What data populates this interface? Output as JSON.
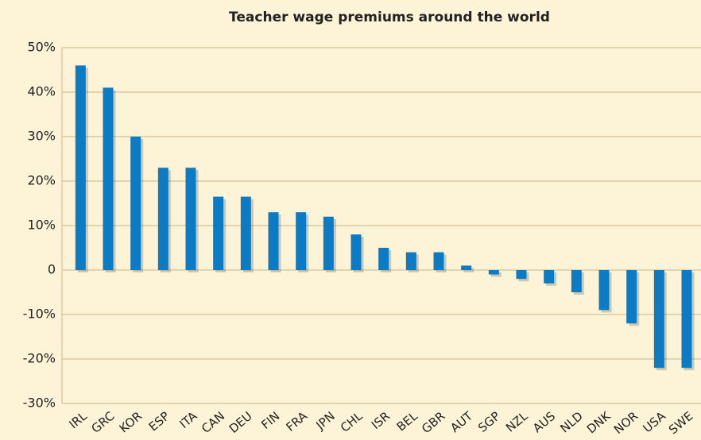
{
  "chart_data": {
    "type": "bar",
    "title": "Teacher wage premiums around the world",
    "categories": [
      "IRL",
      "GRC",
      "KOR",
      "ESP",
      "ITA",
      "CAN",
      "DEU",
      "FIN",
      "FRA",
      "JPN",
      "CHL",
      "ISR",
      "BEL",
      "GBR",
      "AUT",
      "SGP",
      "NZL",
      "AUS",
      "NLD",
      "DNK",
      "NOR",
      "USA",
      "SWE"
    ],
    "values": [
      46,
      41,
      30,
      23,
      23,
      16.5,
      16.5,
      13,
      13,
      12,
      8,
      5,
      4,
      4,
      1,
      -1,
      -2,
      -3,
      -5,
      -9,
      -12,
      -22,
      -22
    ],
    "color": "#0a7bc4",
    "ylim": [
      -30,
      50
    ],
    "yticks": [
      {
        "value": -30,
        "label": "-30%"
      },
      {
        "value": -20,
        "label": "-20%"
      },
      {
        "value": -10,
        "label": "-10%"
      },
      0,
      {
        "value": 10,
        "label": "10%"
      },
      {
        "value": 20,
        "label": "20%"
      },
      {
        "value": 30,
        "label": "30%"
      },
      {
        "value": 40,
        "label": "40%"
      },
      {
        "value": 50,
        "label": "50%"
      }
    ],
    "grid": true
  }
}
